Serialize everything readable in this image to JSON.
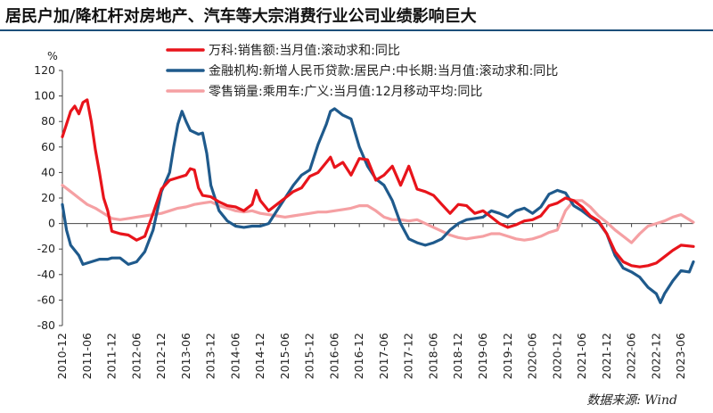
{
  "header": {
    "title": "居民户加/降杠杆对房地产、汽车等大宗消费行业公司业绩影响巨大"
  },
  "source": "数据来源: Wind",
  "colors": {
    "wanke": "#e8141b",
    "loans": "#1f5a8c",
    "cars": "#f5a0a3",
    "title_rule": "#1d4f7a"
  },
  "chart_data": {
    "type": "line",
    "title": "居民户加/降杠杆对房地产、汽车等大宗消费行业公司业绩影响巨大",
    "xlabel": "",
    "ylabel": "%",
    "ylim": [
      -80,
      120
    ],
    "yticks": [
      120,
      100,
      80,
      60,
      40,
      20,
      0,
      -20,
      -40,
      -60,
      -80
    ],
    "x_tick_labels": [
      "2010-12",
      "2011-06",
      "2011-12",
      "2012-06",
      "2012-12",
      "2013-06",
      "2013-12",
      "2014-06",
      "2014-12",
      "2015-06",
      "2015-12",
      "2016-06",
      "2016-12",
      "2017-06",
      "2017-12",
      "2018-06",
      "2018-12",
      "2019-06",
      "2019-12",
      "2020-06",
      "2020-12",
      "2021-06",
      "2021-12",
      "2022-06",
      "2022-12",
      "2023-06"
    ],
    "x_range": [
      "2010-12",
      "2023-09"
    ],
    "grid": false,
    "legend_position": "top",
    "series": [
      {
        "name": "万科:销售额:当月值:滚动求和:同比",
        "color": "#e8141b",
        "points": [
          [
            "2010-12",
            68
          ],
          [
            "2011-02",
            88
          ],
          [
            "2011-03",
            92
          ],
          [
            "2011-04",
            86
          ],
          [
            "2011-05",
            95
          ],
          [
            "2011-06",
            97
          ],
          [
            "2011-07",
            80
          ],
          [
            "2011-08",
            58
          ],
          [
            "2011-09",
            40
          ],
          [
            "2011-10",
            20
          ],
          [
            "2011-11",
            10
          ],
          [
            "2011-12",
            -6
          ],
          [
            "2012-02",
            -8
          ],
          [
            "2012-04",
            -9
          ],
          [
            "2012-06",
            -13
          ],
          [
            "2012-08",
            -10
          ],
          [
            "2012-10",
            8
          ],
          [
            "2012-12",
            27
          ],
          [
            "2013-02",
            34
          ],
          [
            "2013-04",
            36
          ],
          [
            "2013-06",
            38
          ],
          [
            "2013-07",
            43
          ],
          [
            "2013-08",
            42
          ],
          [
            "2013-09",
            28
          ],
          [
            "2013-10",
            22
          ],
          [
            "2013-12",
            21
          ],
          [
            "2014-02",
            17
          ],
          [
            "2014-04",
            14
          ],
          [
            "2014-06",
            13
          ],
          [
            "2014-08",
            10
          ],
          [
            "2014-10",
            15
          ],
          [
            "2014-11",
            26
          ],
          [
            "2014-12",
            18
          ],
          [
            "2015-02",
            10
          ],
          [
            "2015-04",
            15
          ],
          [
            "2015-06",
            20
          ],
          [
            "2015-08",
            25
          ],
          [
            "2015-10",
            28
          ],
          [
            "2015-12",
            37
          ],
          [
            "2016-02",
            40
          ],
          [
            "2016-04",
            48
          ],
          [
            "2016-05",
            52
          ],
          [
            "2016-06",
            44
          ],
          [
            "2016-08",
            48
          ],
          [
            "2016-10",
            38
          ],
          [
            "2016-12",
            51
          ],
          [
            "2017-02",
            50
          ],
          [
            "2017-04",
            34
          ],
          [
            "2017-06",
            38
          ],
          [
            "2017-08",
            45
          ],
          [
            "2017-10",
            30
          ],
          [
            "2017-12",
            45
          ],
          [
            "2018-02",
            27
          ],
          [
            "2018-04",
            25
          ],
          [
            "2018-06",
            22
          ],
          [
            "2018-08",
            15
          ],
          [
            "2018-10",
            8
          ],
          [
            "2018-12",
            15
          ],
          [
            "2019-02",
            14
          ],
          [
            "2019-04",
            8
          ],
          [
            "2019-06",
            10
          ],
          [
            "2019-08",
            5
          ],
          [
            "2019-10",
            0
          ],
          [
            "2019-12",
            -3
          ],
          [
            "2020-02",
            -1
          ],
          [
            "2020-04",
            2
          ],
          [
            "2020-06",
            3
          ],
          [
            "2020-08",
            6
          ],
          [
            "2020-10",
            14
          ],
          [
            "2020-12",
            16
          ],
          [
            "2021-02",
            20
          ],
          [
            "2021-04",
            18
          ],
          [
            "2021-06",
            13
          ],
          [
            "2021-08",
            6
          ],
          [
            "2021-10",
            2
          ],
          [
            "2021-12",
            -8
          ],
          [
            "2022-02",
            -22
          ],
          [
            "2022-04",
            -30
          ],
          [
            "2022-06",
            -33
          ],
          [
            "2022-08",
            -34
          ],
          [
            "2022-10",
            -33
          ],
          [
            "2022-12",
            -31
          ],
          [
            "2023-02",
            -26
          ],
          [
            "2023-04",
            -21
          ],
          [
            "2023-06",
            -17
          ],
          [
            "2023-09",
            -18
          ]
        ]
      },
      {
        "name": "金融机构:新增人民币贷款:居民户:中长期:当月值:滚动求和:同比",
        "color": "#1f5a8c",
        "points": [
          [
            "2010-12",
            15
          ],
          [
            "2011-01",
            -5
          ],
          [
            "2011-02",
            -17
          ],
          [
            "2011-04",
            -25
          ],
          [
            "2011-05",
            -32
          ],
          [
            "2011-07",
            -30
          ],
          [
            "2011-09",
            -28
          ],
          [
            "2011-11",
            -28
          ],
          [
            "2011-12",
            -27
          ],
          [
            "2012-02",
            -27
          ],
          [
            "2012-04",
            -32
          ],
          [
            "2012-06",
            -30
          ],
          [
            "2012-08",
            -22
          ],
          [
            "2012-10",
            -5
          ],
          [
            "2012-12",
            25
          ],
          [
            "2013-02",
            40
          ],
          [
            "2013-03",
            60
          ],
          [
            "2013-04",
            78
          ],
          [
            "2013-05",
            88
          ],
          [
            "2013-06",
            80
          ],
          [
            "2013-07",
            73
          ],
          [
            "2013-09",
            70
          ],
          [
            "2013-10",
            71
          ],
          [
            "2013-11",
            55
          ],
          [
            "2013-12",
            30
          ],
          [
            "2014-02",
            10
          ],
          [
            "2014-04",
            2
          ],
          [
            "2014-06",
            -2
          ],
          [
            "2014-08",
            -3
          ],
          [
            "2014-10",
            -2
          ],
          [
            "2014-12",
            -2
          ],
          [
            "2015-02",
            0
          ],
          [
            "2015-04",
            10
          ],
          [
            "2015-06",
            20
          ],
          [
            "2015-08",
            30
          ],
          [
            "2015-10",
            38
          ],
          [
            "2015-12",
            42
          ],
          [
            "2016-02",
            62
          ],
          [
            "2016-04",
            78
          ],
          [
            "2016-05",
            88
          ],
          [
            "2016-06",
            90
          ],
          [
            "2016-08",
            85
          ],
          [
            "2016-10",
            82
          ],
          [
            "2016-12",
            60
          ],
          [
            "2017-02",
            45
          ],
          [
            "2017-04",
            35
          ],
          [
            "2017-06",
            30
          ],
          [
            "2017-08",
            18
          ],
          [
            "2017-10",
            0
          ],
          [
            "2017-12",
            -12
          ],
          [
            "2018-02",
            -15
          ],
          [
            "2018-04",
            -17
          ],
          [
            "2018-06",
            -15
          ],
          [
            "2018-08",
            -12
          ],
          [
            "2018-10",
            -5
          ],
          [
            "2018-12",
            0
          ],
          [
            "2019-02",
            3
          ],
          [
            "2019-04",
            4
          ],
          [
            "2019-06",
            5
          ],
          [
            "2019-08",
            10
          ],
          [
            "2019-10",
            8
          ],
          [
            "2019-12",
            5
          ],
          [
            "2020-02",
            10
          ],
          [
            "2020-04",
            12
          ],
          [
            "2020-06",
            8
          ],
          [
            "2020-08",
            13
          ],
          [
            "2020-10",
            23
          ],
          [
            "2020-12",
            26
          ],
          [
            "2021-02",
            24
          ],
          [
            "2021-04",
            14
          ],
          [
            "2021-06",
            10
          ],
          [
            "2021-08",
            5
          ],
          [
            "2021-10",
            1
          ],
          [
            "2021-12",
            -8
          ],
          [
            "2022-02",
            -25
          ],
          [
            "2022-04",
            -35
          ],
          [
            "2022-06",
            -38
          ],
          [
            "2022-08",
            -42
          ],
          [
            "2022-10",
            -50
          ],
          [
            "2022-12",
            -55
          ],
          [
            "2023-01",
            -62
          ],
          [
            "2023-02",
            -55
          ],
          [
            "2023-04",
            -45
          ],
          [
            "2023-06",
            -37
          ],
          [
            "2023-08",
            -38
          ],
          [
            "2023-09",
            -30
          ]
        ]
      },
      {
        "name": "零售销量:乘用车:广义:当月值:12月移动平均:同比",
        "color": "#f5a0a3",
        "points": [
          [
            "2010-12",
            30
          ],
          [
            "2011-02",
            25
          ],
          [
            "2011-04",
            20
          ],
          [
            "2011-06",
            15
          ],
          [
            "2011-08",
            12
          ],
          [
            "2011-10",
            8
          ],
          [
            "2011-12",
            4
          ],
          [
            "2012-02",
            3
          ],
          [
            "2012-04",
            4
          ],
          [
            "2012-06",
            5
          ],
          [
            "2012-08",
            6
          ],
          [
            "2012-10",
            7
          ],
          [
            "2012-12",
            8
          ],
          [
            "2013-02",
            10
          ],
          [
            "2013-04",
            12
          ],
          [
            "2013-06",
            13
          ],
          [
            "2013-08",
            15
          ],
          [
            "2013-10",
            16
          ],
          [
            "2013-12",
            17
          ],
          [
            "2014-02",
            14
          ],
          [
            "2014-04",
            12
          ],
          [
            "2014-06",
            10
          ],
          [
            "2014-08",
            9
          ],
          [
            "2014-10",
            10
          ],
          [
            "2014-12",
            8
          ],
          [
            "2015-02",
            7
          ],
          [
            "2015-04",
            6
          ],
          [
            "2015-06",
            5
          ],
          [
            "2015-08",
            6
          ],
          [
            "2015-10",
            7
          ],
          [
            "2015-12",
            8
          ],
          [
            "2016-02",
            9
          ],
          [
            "2016-04",
            9
          ],
          [
            "2016-06",
            10
          ],
          [
            "2016-08",
            11
          ],
          [
            "2016-10",
            12
          ],
          [
            "2016-12",
            14
          ],
          [
            "2017-02",
            14
          ],
          [
            "2017-04",
            10
          ],
          [
            "2017-06",
            5
          ],
          [
            "2017-08",
            3
          ],
          [
            "2017-10",
            3
          ],
          [
            "2017-12",
            2
          ],
          [
            "2018-02",
            3
          ],
          [
            "2018-04",
            0
          ],
          [
            "2018-06",
            -3
          ],
          [
            "2018-08",
            -6
          ],
          [
            "2018-10",
            -9
          ],
          [
            "2018-12",
            -11
          ],
          [
            "2019-02",
            -12
          ],
          [
            "2019-04",
            -11
          ],
          [
            "2019-06",
            -10
          ],
          [
            "2019-08",
            -8
          ],
          [
            "2019-10",
            -8
          ],
          [
            "2019-12",
            -10
          ],
          [
            "2020-02",
            -12
          ],
          [
            "2020-04",
            -13
          ],
          [
            "2020-06",
            -12
          ],
          [
            "2020-08",
            -10
          ],
          [
            "2020-10",
            -7
          ],
          [
            "2020-12",
            -5
          ],
          [
            "2021-02",
            10
          ],
          [
            "2021-04",
            18
          ],
          [
            "2021-06",
            18
          ],
          [
            "2021-08",
            13
          ],
          [
            "2021-10",
            6
          ],
          [
            "2021-12",
            1
          ],
          [
            "2022-02",
            -5
          ],
          [
            "2022-04",
            -10
          ],
          [
            "2022-06",
            -15
          ],
          [
            "2022-08",
            -8
          ],
          [
            "2022-10",
            -2
          ],
          [
            "2022-12",
            0
          ],
          [
            "2023-02",
            2
          ],
          [
            "2023-04",
            5
          ],
          [
            "2023-06",
            7
          ],
          [
            "2023-08",
            3
          ],
          [
            "2023-09",
            1
          ]
        ]
      }
    ]
  }
}
